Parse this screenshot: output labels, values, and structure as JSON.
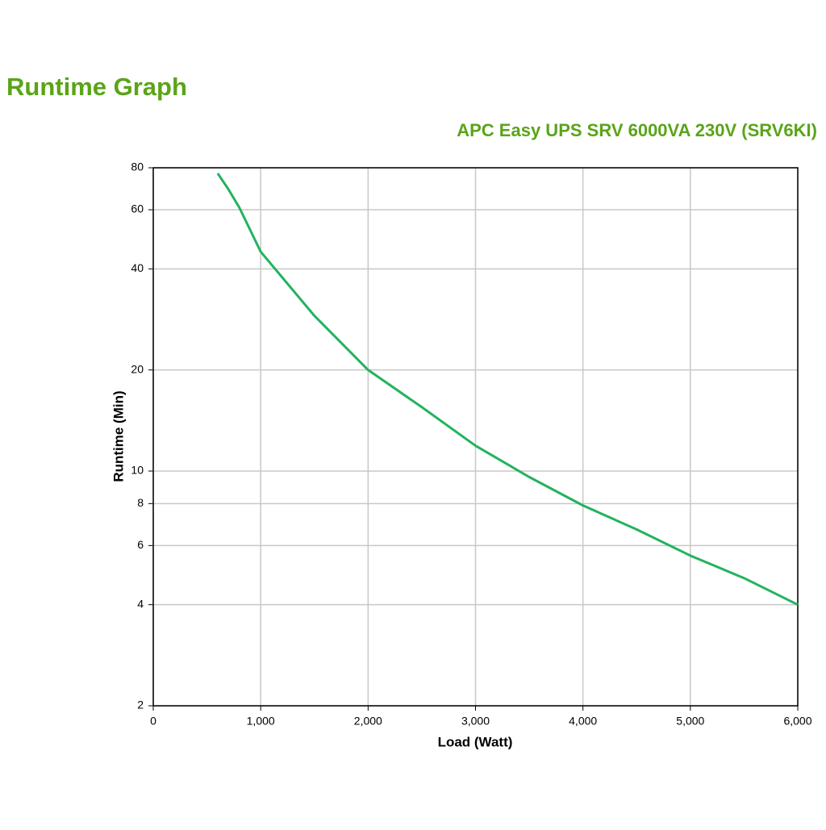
{
  "chart_data": {
    "type": "line",
    "title": "Runtime Graph",
    "subtitle": "APC Easy UPS SRV 6000VA 230V (SRV6KI)",
    "x_label": "Load (Watt)",
    "y_label": "Runtime (Min)",
    "y_scale": "log",
    "grid": true,
    "x": [
      600,
      700,
      800,
      1000,
      1500,
      2000,
      2500,
      3000,
      3500,
      4000,
      4500,
      5000,
      5500,
      6000
    ],
    "series": [
      {
        "name": "Runtime",
        "color": "#22b35e",
        "values": [
          77,
          69,
          61,
          45,
          29,
          20,
          15.5,
          11.9,
          9.6,
          7.9,
          6.7,
          5.6,
          4.8,
          4.0
        ]
      }
    ],
    "xlim": [
      0,
      6000
    ],
    "xticks": [
      0,
      {
        "value": 1000,
        "label": "1,000"
      },
      {
        "value": 2000,
        "label": "2,000"
      },
      {
        "value": 3000,
        "label": "3,000"
      },
      {
        "value": 4000,
        "label": "4,000"
      },
      {
        "value": 5000,
        "label": "5,000"
      },
      {
        "value": 6000,
        "label": "6,000"
      }
    ],
    "ylim": [
      2,
      80
    ],
    "yticks": [
      2,
      4,
      6,
      8,
      10,
      20,
      40,
      60,
      80
    ]
  }
}
